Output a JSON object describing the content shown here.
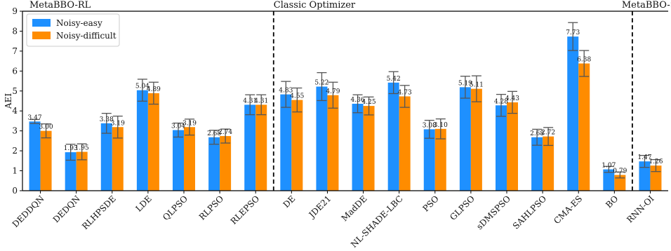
{
  "chart_data": {
    "type": "bar",
    "title": "",
    "xlabel": "",
    "ylabel": "AEI",
    "ylim": [
      0,
      9
    ],
    "yticks": [
      0,
      1,
      2,
      3,
      4,
      5,
      6,
      7,
      8,
      9
    ],
    "grid": false,
    "legend_position": "top-left",
    "group_labels": [
      {
        "label": "MetaBBO-RL",
        "start_index": 0
      },
      {
        "label": "Classic Optimizer",
        "start_index": 7
      },
      {
        "label": "MetaBBO-SL",
        "start_index": 17
      }
    ],
    "categories": [
      "DEDDQN",
      "DEDQN",
      "RLHPSDE",
      "LDE",
      "QLPSO",
      "RLPSO",
      "RLEPSO",
      "DE",
      "JDE21",
      "MadDE",
      "NL-SHADE-LBC",
      "PSO",
      "GLPSO",
      "sDMSPSO",
      "SAHLPSO",
      "CMA-ES",
      "BO",
      "RNN-OI"
    ],
    "series": [
      {
        "name": "Noisy-easy",
        "color": "#1e90ff",
        "values": [
          3.47,
          1.93,
          3.38,
          5.04,
          3.04,
          2.68,
          4.31,
          4.83,
          5.22,
          4.36,
          5.42,
          3.08,
          5.19,
          4.28,
          2.68,
          7.73,
          1.07,
          1.47
        ],
        "labels": [
          "3.47",
          "1.93",
          "3.38",
          "5.04",
          "3.04",
          "2.68",
          "4.31",
          "4.83",
          "5.22",
          "4.36",
          "5.42",
          "3.08",
          "5.19",
          "4.28",
          "2.68",
          "7.73",
          "1.07",
          "1.47"
        ],
        "errors": [
          0.1,
          0.4,
          0.5,
          0.55,
          0.35,
          0.35,
          0.5,
          0.65,
          0.7,
          0.45,
          0.55,
          0.45,
          0.55,
          0.55,
          0.4,
          0.7,
          0.15,
          0.3
        ]
      },
      {
        "name": "Noisy-difficult",
        "color": "#ff8c00",
        "values": [
          3.0,
          1.95,
          3.19,
          4.89,
          3.19,
          2.74,
          4.31,
          4.55,
          4.79,
          4.25,
          4.73,
          3.1,
          5.11,
          4.43,
          2.72,
          6.38,
          0.79,
          1.26
        ],
        "labels": [
          "3.00",
          "1.95",
          "3.19",
          "4.89",
          "3.19",
          "2.74",
          "4.31",
          "4.55",
          "4.79",
          "4.25",
          "4.73",
          "3.10",
          "5.11",
          "4.43",
          "2.72",
          "6.38",
          "0.79",
          "1.26"
        ],
        "errors": [
          0.35,
          0.4,
          0.55,
          0.55,
          0.4,
          0.35,
          0.5,
          0.6,
          0.65,
          0.45,
          0.55,
          0.5,
          0.65,
          0.55,
          0.45,
          0.65,
          0.15,
          0.3
        ]
      }
    ]
  }
}
